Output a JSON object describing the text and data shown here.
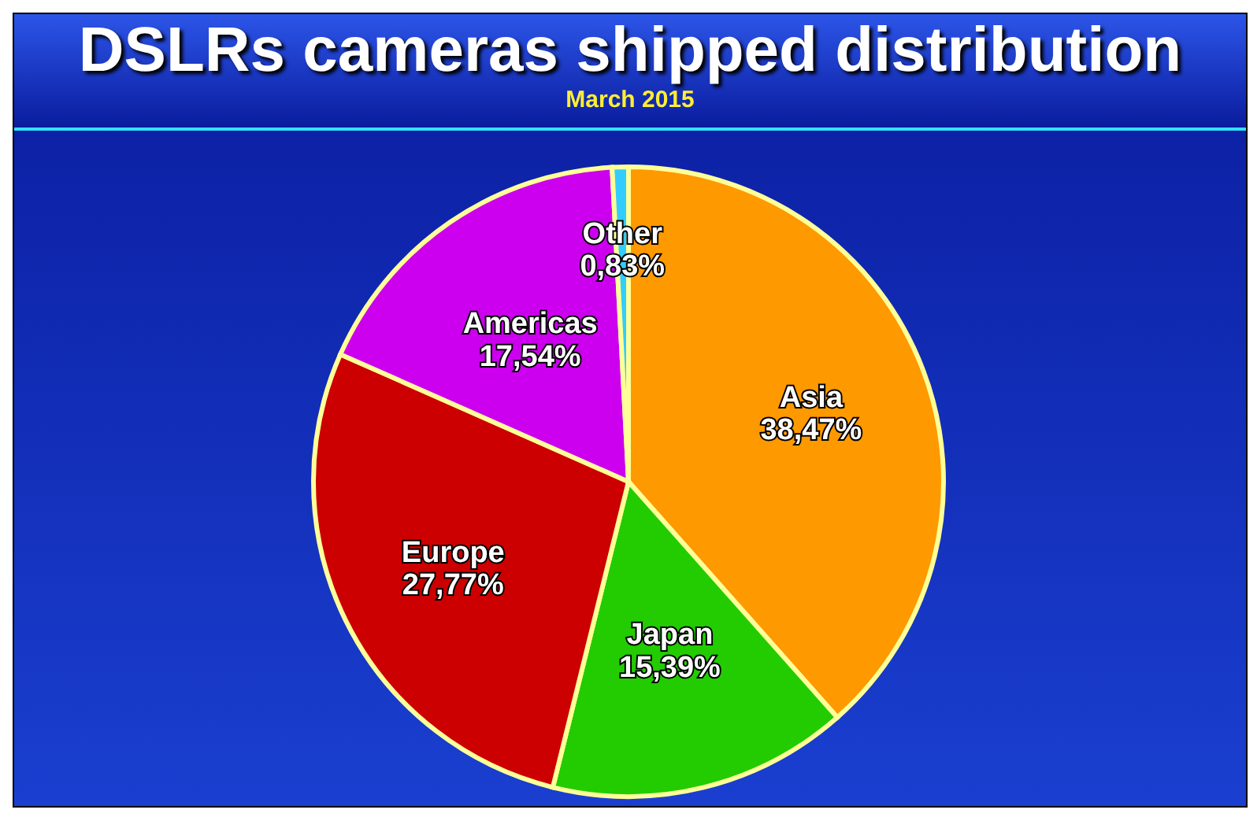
{
  "chart_data": {
    "type": "pie",
    "title": "DSLRs cameras shipped distribution",
    "subtitle": "March 2015",
    "categories": [
      "Asia",
      "Japan",
      "Europe",
      "Americas",
      "Other"
    ],
    "values": [
      38.47,
      15.39,
      27.77,
      17.54,
      0.83
    ],
    "value_labels": [
      "38,47%",
      "15,39%",
      "27,77%",
      "17,54%",
      "0,83%"
    ],
    "colors": [
      "#ff9900",
      "#22cc00",
      "#cc0000",
      "#cc00ee",
      "#33ccff"
    ],
    "legend": false
  }
}
